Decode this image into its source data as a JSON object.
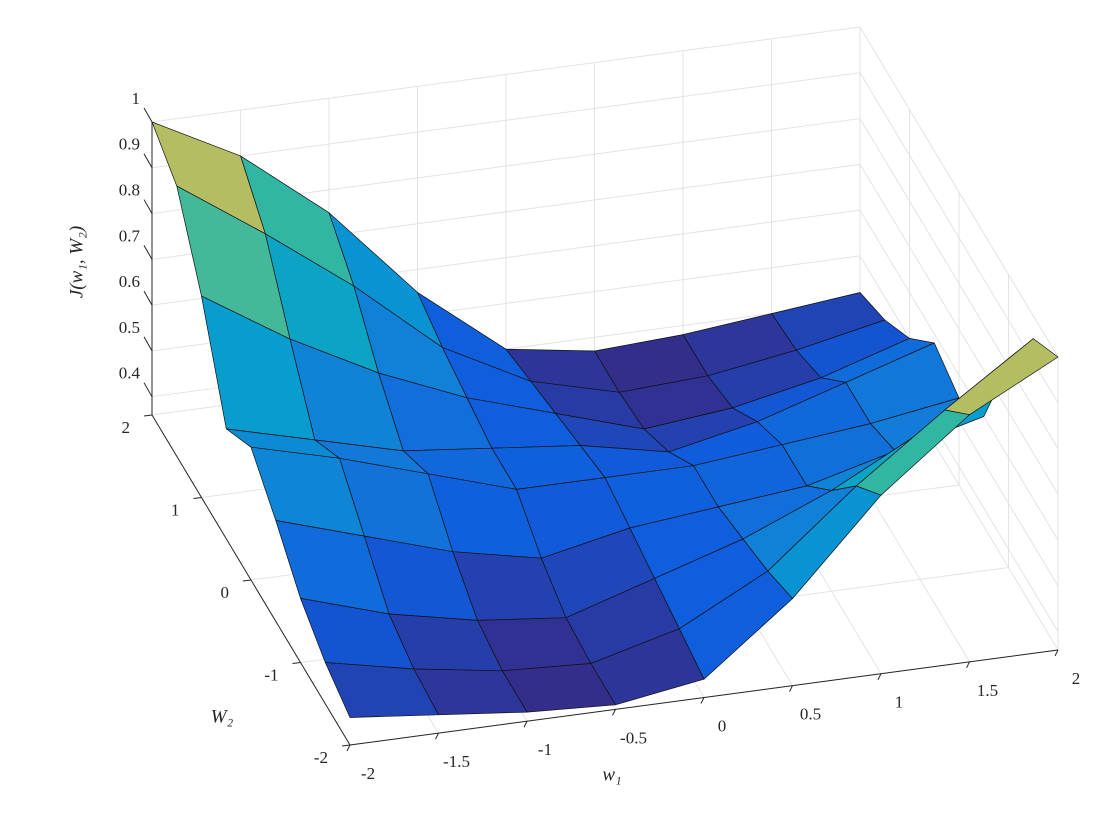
{
  "chart_data": {
    "type": "surface",
    "xlabel": "w₁",
    "ylabel": "W₂",
    "zlabel": "J(w₁, W₂)",
    "x": [
      -2,
      -1.5,
      -1,
      -0.5,
      0,
      0.5,
      1,
      1.5,
      2
    ],
    "y": [
      -2,
      -1.5,
      -1,
      -0.5,
      0,
      0.5,
      1,
      1.5,
      2
    ],
    "z": [
      [
        0.42,
        0.4,
        0.38,
        0.37,
        0.4,
        0.55,
        0.75,
        0.9,
        1.0
      ],
      [
        0.45,
        0.41,
        0.38,
        0.37,
        0.42,
        0.52,
        0.68,
        0.82,
        0.95
      ],
      [
        0.5,
        0.44,
        0.4,
        0.38,
        0.44,
        0.5,
        0.58,
        0.68,
        0.8
      ],
      [
        0.58,
        0.52,
        0.46,
        0.42,
        0.46,
        0.48,
        0.5,
        0.55,
        0.6
      ],
      [
        0.65,
        0.6,
        0.54,
        0.48,
        0.48,
        0.48,
        0.5,
        0.52,
        0.55
      ],
      [
        0.6,
        0.55,
        0.5,
        0.48,
        0.46,
        0.42,
        0.46,
        0.52,
        0.58
      ],
      [
        0.8,
        0.68,
        0.58,
        0.5,
        0.44,
        0.38,
        0.4,
        0.44,
        0.5
      ],
      [
        0.95,
        0.82,
        0.68,
        0.52,
        0.42,
        0.37,
        0.38,
        0.41,
        0.45
      ],
      [
        1.0,
        0.9,
        0.75,
        0.55,
        0.4,
        0.37,
        0.38,
        0.4,
        0.42
      ]
    ],
    "xlim": [
      -2,
      2
    ],
    "ylim": [
      -2,
      2
    ],
    "zlim": [
      0.36,
      1
    ],
    "xticks": [
      -2,
      -1.5,
      -1,
      -0.5,
      0,
      0.5,
      1,
      1.5,
      2
    ],
    "yticks": [
      -2,
      -1,
      0,
      1,
      2
    ],
    "zticks": [
      0.4,
      0.5,
      0.6,
      0.7,
      0.8,
      0.9,
      1
    ],
    "grid": true,
    "colormap": "parula"
  }
}
